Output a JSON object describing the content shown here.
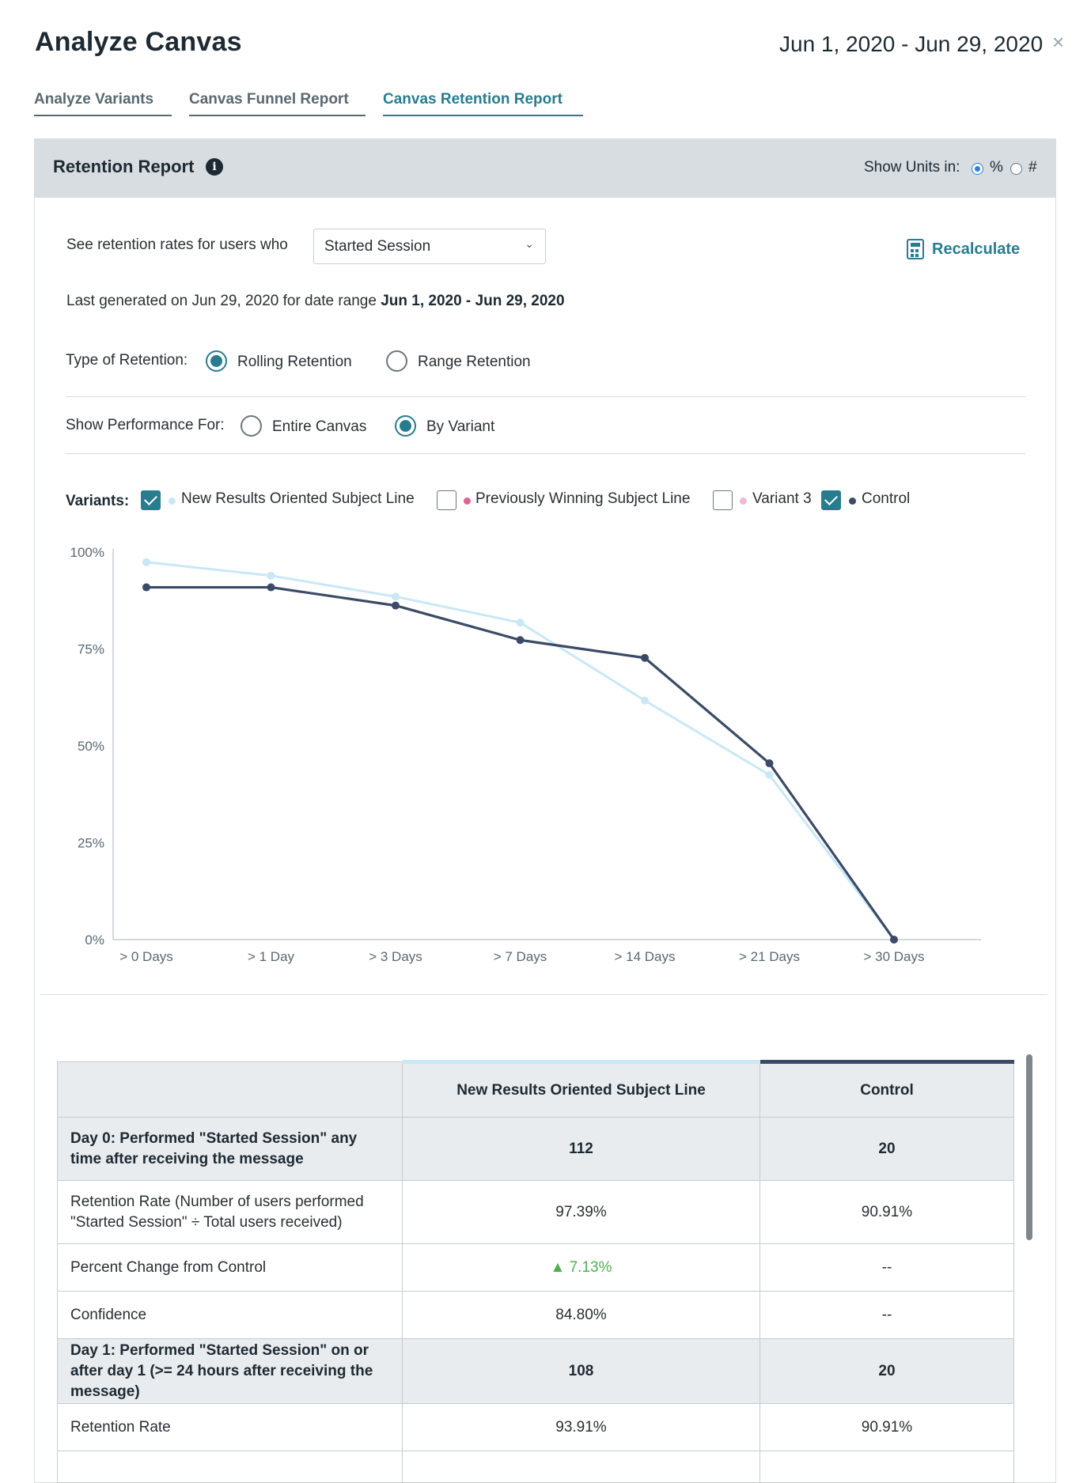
{
  "header": {
    "title": "Analyze Canvas",
    "date_range": "Jun 1, 2020 - Jun 29, 2020",
    "close_glyph": "×"
  },
  "tabs": [
    {
      "label": "Analyze Variants",
      "active": false
    },
    {
      "label": "Canvas Funnel Report",
      "active": false
    },
    {
      "label": "Canvas Retention Report",
      "active": true
    }
  ],
  "report": {
    "title": "Retention Report",
    "info_glyph": "i",
    "units_label": "Show Units in:",
    "units_options": [
      "%",
      "#"
    ],
    "units_selected": "%",
    "see_rates_label": "See retention rates for users who",
    "event_select": "Started Session",
    "recalculate_label": "Recalculate",
    "last_generated_prefix": "Last generated on Jun 29, 2020 for date range",
    "last_generated_range": "Jun 1, 2020 - Jun 29, 2020",
    "retention_type_label": "Type of Retention:",
    "retention_types": [
      "Rolling Retention",
      "Range Retention"
    ],
    "retention_type_selected": "Rolling Retention",
    "performance_label": "Show Performance For:",
    "performance_options": [
      "Entire Canvas",
      "By Variant"
    ],
    "performance_selected": "By Variant",
    "variants_label": "Variants:",
    "variants": [
      {
        "name": "New Results Oriented Subject Line",
        "checked": true,
        "color": "#c9e8f5"
      },
      {
        "name": "Previously Winning Subject Line",
        "checked": false,
        "color": "#e0649b"
      },
      {
        "name": "Variant 3",
        "checked": false,
        "color": "#f2b8d4"
      },
      {
        "name": "Control",
        "checked": true,
        "color": "#3b4a66"
      }
    ]
  },
  "chart_data": {
    "type": "line",
    "categories": [
      "> 0 Days",
      "> 1 Day",
      "> 3 Days",
      "> 7 Days",
      "> 14 Days",
      "> 21 Days",
      "> 30 Days"
    ],
    "yticks": [
      "100%",
      "75%",
      "50%",
      "25%",
      "0%"
    ],
    "ylim": [
      0,
      100
    ],
    "series": [
      {
        "name": "New Results Oriented Subject Line",
        "color": "#c9e8f5",
        "values": [
          97.39,
          93.91,
          88.5,
          81.8,
          61.7,
          42.5,
          0
        ]
      },
      {
        "name": "Control",
        "color": "#3b4a66",
        "values": [
          90.91,
          90.91,
          86.2,
          77.3,
          72.7,
          45.5,
          0
        ]
      }
    ],
    "grid": false
  },
  "table": {
    "headers": [
      "",
      "New Results Oriented Subject Line",
      "Control"
    ],
    "header_colors": [
      "",
      "#c9e8f5",
      "#3b4a66"
    ],
    "rows": [
      {
        "group": true,
        "label": "Day 0: Performed \"Started Session\" any time after receiving the message",
        "values": [
          "112",
          "20"
        ]
      },
      {
        "group": false,
        "label": "Retention Rate (Number of users performed \"Started Session\" ÷ Total users received)",
        "values": [
          "97.39%",
          "90.91%"
        ]
      },
      {
        "group": false,
        "label": "Percent Change from Control",
        "values": [
          "▲ 7.13%",
          "--"
        ],
        "positive": true
      },
      {
        "group": false,
        "label": "Confidence",
        "values": [
          "84.80%",
          "--"
        ]
      },
      {
        "group": true,
        "label": "Day 1: Performed \"Started Session\" on or after day 1 (>= 24 hours after receiving the message)",
        "values": [
          "108",
          "20"
        ]
      },
      {
        "group": false,
        "label": "Retention Rate",
        "values": [
          "93.91%",
          "90.91%"
        ]
      }
    ]
  }
}
